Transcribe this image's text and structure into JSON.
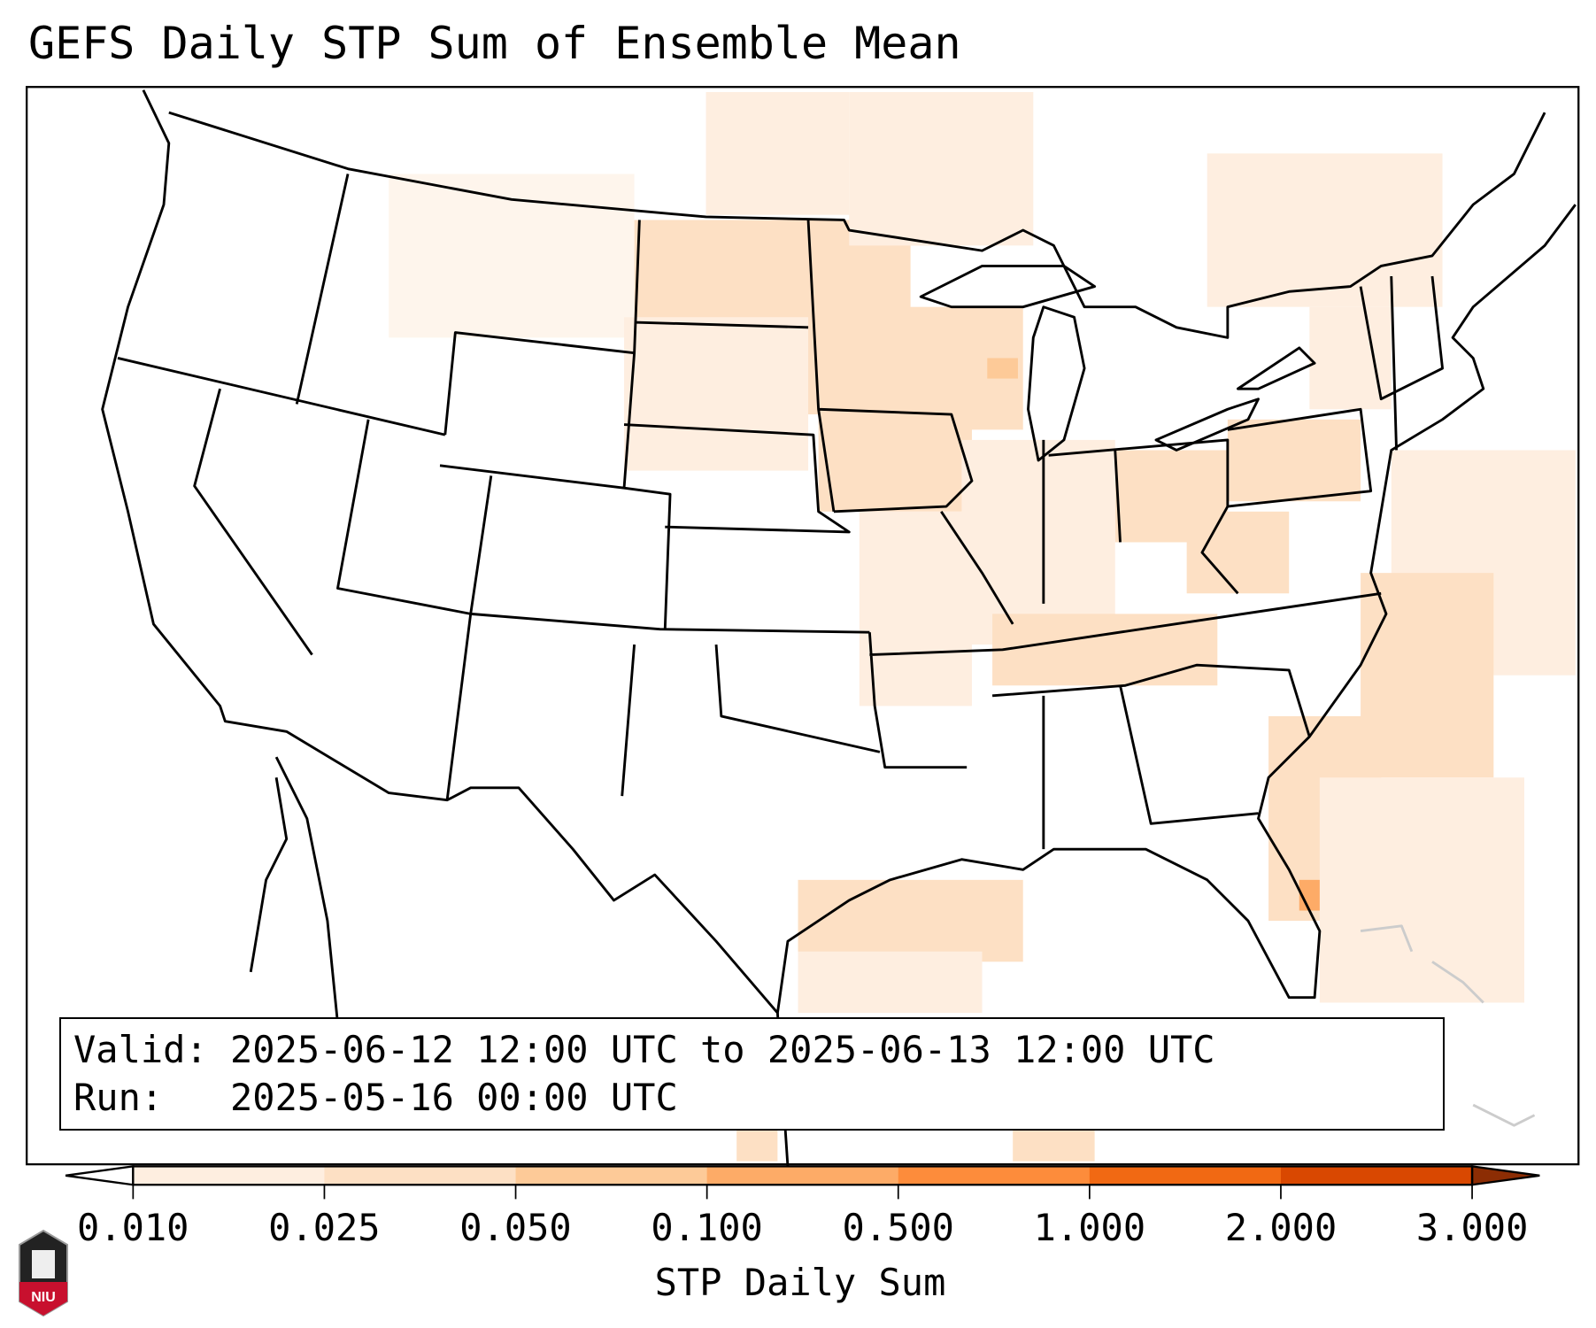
{
  "title": "GEFS Daily STP Sum of Ensemble Mean",
  "info": {
    "valid_line": "Valid: 2025-06-12 12:00 UTC to 2025-06-13 12:00 UTC",
    "run_line": "Run:   2025-05-16 00:00 UTC"
  },
  "colorbar": {
    "label": "STP Daily Sum",
    "ticks": [
      "0.010",
      "0.025",
      "0.050",
      "0.100",
      "0.500",
      "1.000",
      "2.000",
      "3.000"
    ],
    "colors": [
      "#feeee0",
      "#fde0c4",
      "#fdca98",
      "#fdab67",
      "#fd8c3b",
      "#f16913",
      "#d94801"
    ],
    "over_color": "#8c2d04",
    "under_color": "#ffffff",
    "extend": "both"
  },
  "logo": {
    "text": "NIU"
  }
}
